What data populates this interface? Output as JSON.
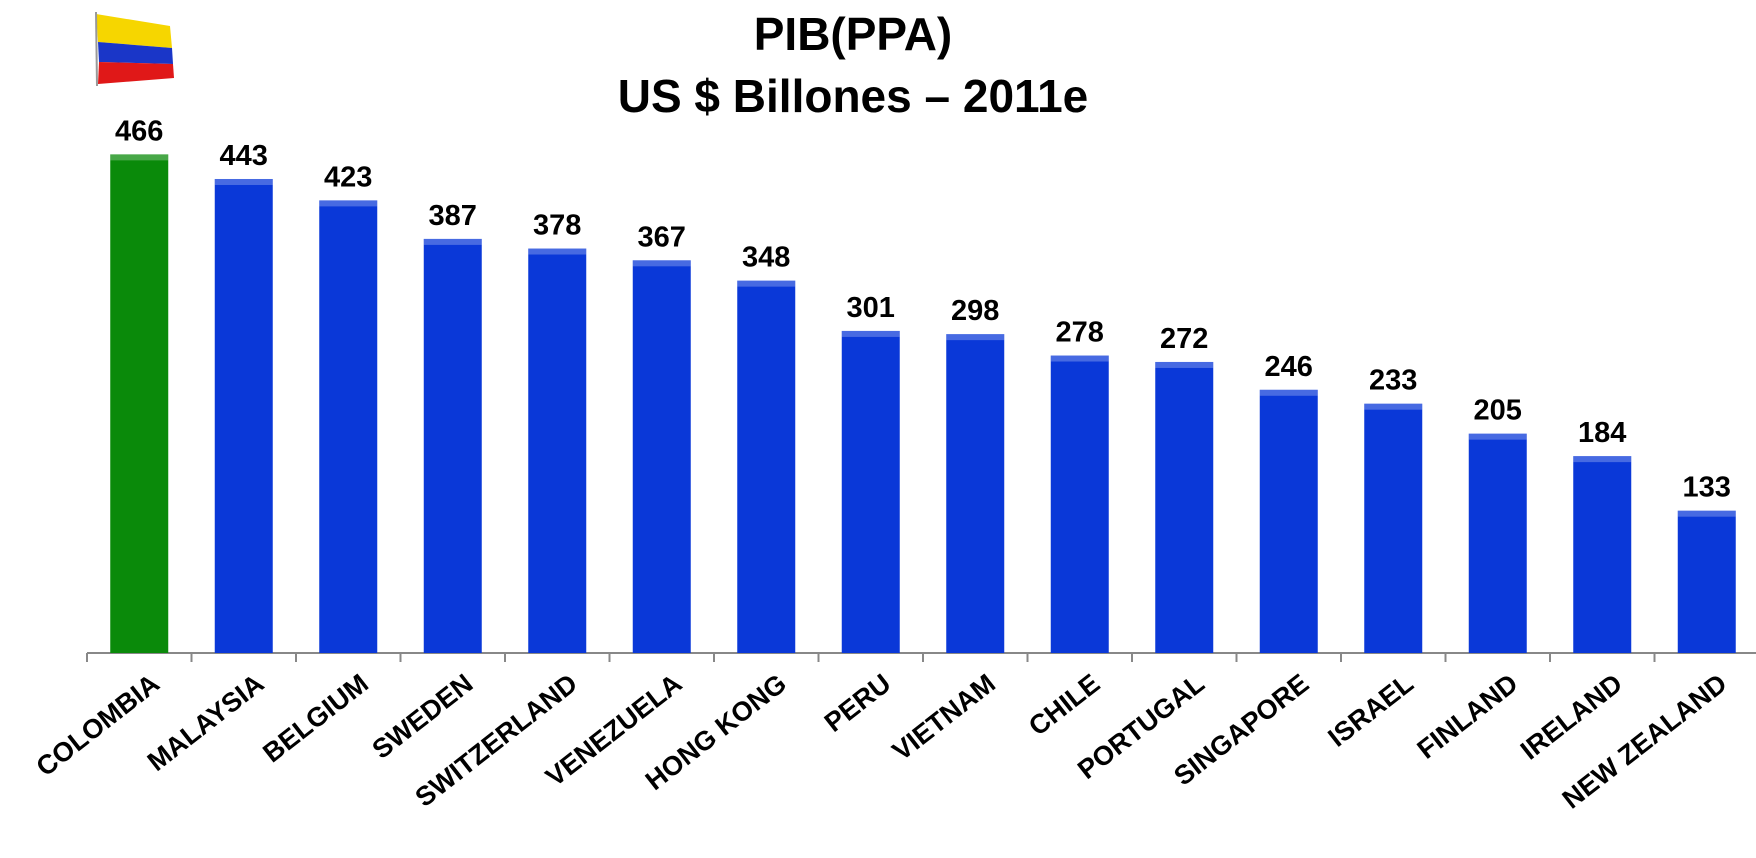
{
  "chart_data": {
    "type": "bar",
    "title": [
      "PIB(PPA)",
      "US $ Billones – 2011e"
    ],
    "categories": [
      "COLOMBIA",
      "MALAYSIA",
      "BELGIUM",
      "SWEDEN",
      "SWITZERLAND",
      "VENEZUELA",
      "HONG KONG",
      "PERU",
      "VIETNAM",
      "CHILE",
      "PORTUGAL",
      "SINGAPORE",
      "ISRAEL",
      "FINLAND",
      "IRELAND",
      "NEW ZEALAND"
    ],
    "values": [
      466,
      443,
      423,
      387,
      378,
      367,
      348,
      301,
      298,
      278,
      272,
      246,
      233,
      205,
      184,
      133
    ],
    "colors": [
      "#0a8a0a",
      "#0a38d8",
      "#0a38d8",
      "#0a38d8",
      "#0a38d8",
      "#0a38d8",
      "#0a38d8",
      "#0a38d8",
      "#0a38d8",
      "#0a38d8",
      "#0a38d8",
      "#0a38d8",
      "#0a38d8",
      "#0a38d8",
      "#0a38d8",
      "#0a38d8"
    ]
  }
}
